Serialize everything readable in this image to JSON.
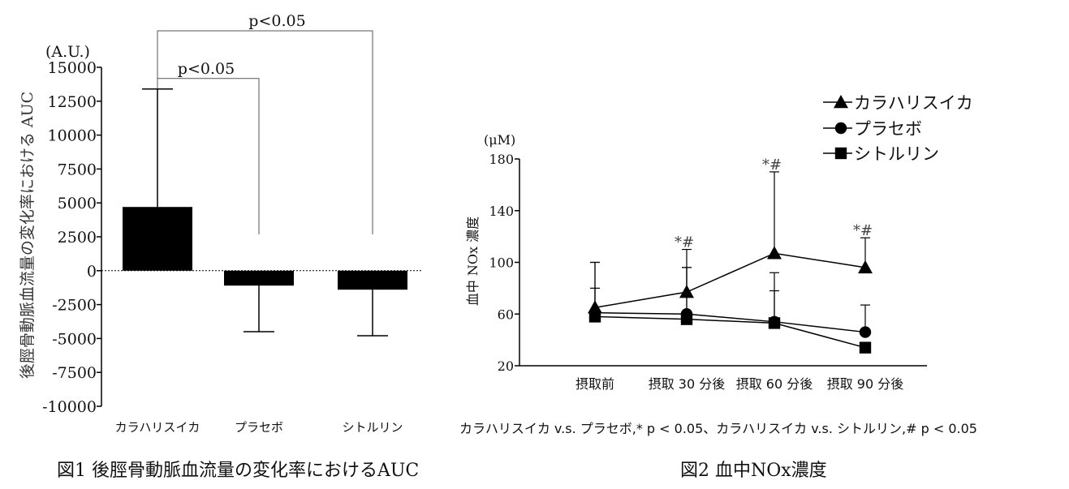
{
  "chart_data": [
    {
      "type": "bar",
      "caption": "図1 後脛骨動脈血流量の変化率におけるAUC",
      "ylabel": "後脛骨動脈血流量の変化率における AUC",
      "yunit": "(A.U.)",
      "ylim": [
        -10000,
        15000
      ],
      "yticks": [
        15000,
        12500,
        10000,
        7500,
        5000,
        2500,
        0,
        -2500,
        -5000,
        -7500,
        -10000
      ],
      "categories": [
        "カラハリスイカ",
        "プラセボ",
        "シトルリン"
      ],
      "values": [
        4700,
        -1100,
        -1400
      ],
      "error": [
        8700,
        3400,
        3400
      ],
      "zero_line": "dotted",
      "significance": [
        {
          "from": 0,
          "to": 1,
          "label": "p<0.05"
        },
        {
          "from": 0,
          "to": 2,
          "label": "p<0.05"
        }
      ]
    },
    {
      "type": "line",
      "caption": "図2 血中NOx濃度",
      "ylabel": "血中 NOx 濃度",
      "yunit": "(μM)",
      "ylim": [
        20,
        180
      ],
      "yticks": [
        180,
        140,
        100,
        60,
        20
      ],
      "categories": [
        "摂取前",
        "摂取 30 分後",
        "摂取 60 分後",
        "摂取 90 分後"
      ],
      "series": [
        {
          "name": "カラハリスイカ",
          "marker": "triangle",
          "values": [
            65,
            77,
            107,
            96
          ],
          "error": [
            35,
            33,
            63,
            23
          ]
        },
        {
          "name": "プラセボ",
          "marker": "circle",
          "values": [
            61,
            60,
            54,
            46
          ],
          "error": [
            39,
            36,
            38,
            21
          ]
        },
        {
          "name": "シトルリン",
          "marker": "square",
          "values": [
            58,
            56,
            53,
            34
          ],
          "error": [
            22,
            40,
            25,
            0
          ]
        }
      ],
      "annotations": [
        {
          "category": 1,
          "label": "*#"
        },
        {
          "category": 2,
          "label": "*#"
        },
        {
          "category": 3,
          "label": "*#"
        }
      ],
      "footnote": "カラハリスイカ v.s. プラセボ,* p < 0.05、カラハリスイカ v.s. シトルリン,# p < 0.05",
      "legend_position": "top-right"
    }
  ]
}
